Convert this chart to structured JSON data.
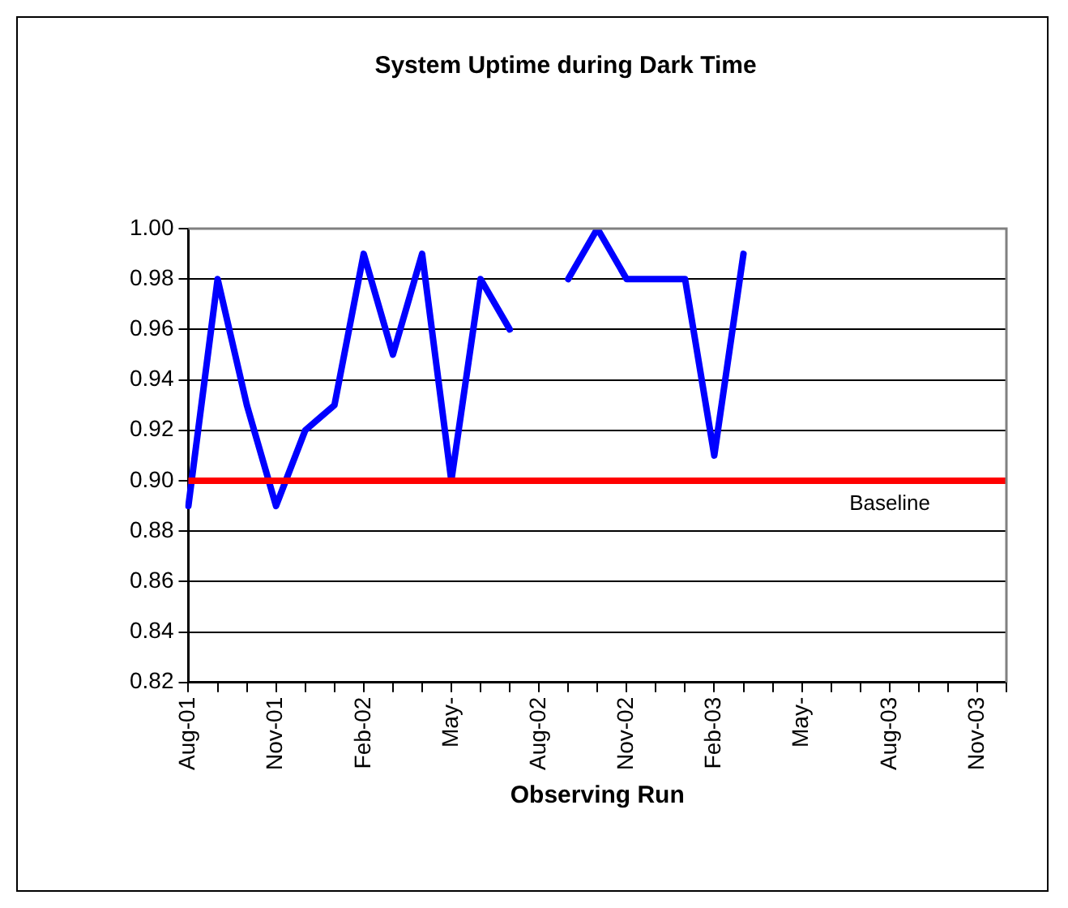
{
  "chart_data": {
    "type": "line",
    "title": "System Uptime during Dark Time",
    "xlabel": "Observing Run",
    "categories": [
      "Aug-01",
      null,
      null,
      "Nov-01",
      null,
      null,
      "Feb-02",
      null,
      null,
      "May-",
      null,
      null,
      "Aug-02",
      null,
      null,
      "Nov-02",
      null,
      null,
      "Feb-03",
      null,
      null,
      "May-",
      null,
      null,
      "Aug-03",
      null,
      null,
      "Nov-03",
      null
    ],
    "series": [
      {
        "color": "#0000ff",
        "values": [
          0.89,
          0.98,
          0.93,
          0.89,
          0.92,
          0.93,
          0.99,
          0.95,
          0.99,
          0.9,
          0.98,
          0.96,
          null,
          0.98,
          1.0,
          0.98,
          0.98,
          0.98,
          0.91,
          0.99,
          null,
          null,
          null,
          null,
          null,
          null,
          null,
          null,
          null
        ]
      }
    ],
    "ylim": [
      0.82,
      1.0
    ],
    "yticks": [
      0.82,
      0.84,
      0.86,
      0.88,
      {
        "value": 0.9,
        "label": "0.90"
      },
      0.92,
      0.94,
      0.96,
      0.98,
      {
        "value": 1,
        "label": "1.00"
      }
    ],
    "ref_lines": [
      {
        "axis": "y",
        "value": 0.9,
        "label": "Baseline",
        "color": "#ff0000"
      }
    ],
    "grid": "y",
    "legend": false,
    "marker": "none",
    "line_style": "solid"
  }
}
